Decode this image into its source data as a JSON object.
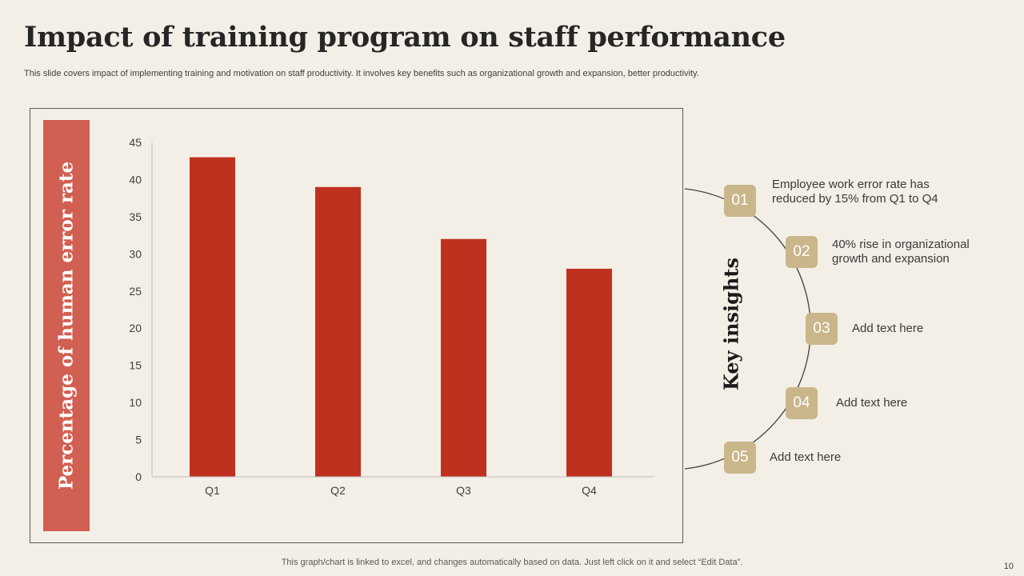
{
  "slide": {
    "title": "Impact of training program on staff performance",
    "subtitle": "This slide covers impact of implementing training and motivation on staff productivity. It involves key benefits such as organizational growth and expansion, better productivity.",
    "footnote": "This graph/chart is linked to excel, and changes automatically based on data. Just left click on it and select “Edit Data”.",
    "page_number": "10"
  },
  "chart_data": {
    "type": "bar",
    "title": "",
    "xlabel": "",
    "ylabel": "Percentage of human error rate",
    "categories": [
      "Q1",
      "Q2",
      "Q3",
      "Q4"
    ],
    "values": [
      43,
      39,
      32,
      28
    ],
    "ylim": [
      0,
      45
    ],
    "yticks": [
      0,
      5,
      10,
      15,
      20,
      25,
      30,
      35,
      40,
      45
    ],
    "grid": false,
    "bar_color": "#c0301f"
  },
  "key_insights": {
    "title": "Key insights",
    "items": [
      {
        "number": "01",
        "text": "Employee work error rate has reduced by 15% from Q1 to Q4"
      },
      {
        "number": "02",
        "text": "40% rise in organizational growth and expansion"
      },
      {
        "number": "03",
        "text": "Add text here"
      },
      {
        "number": "04",
        "text": "Add text here"
      },
      {
        "number": "05",
        "text": "Add text here"
      }
    ]
  },
  "colors": {
    "background": "#f3efe6",
    "accent_band": "#d15f52",
    "bar": "#c0301f",
    "badge": "#c9b68a"
  }
}
